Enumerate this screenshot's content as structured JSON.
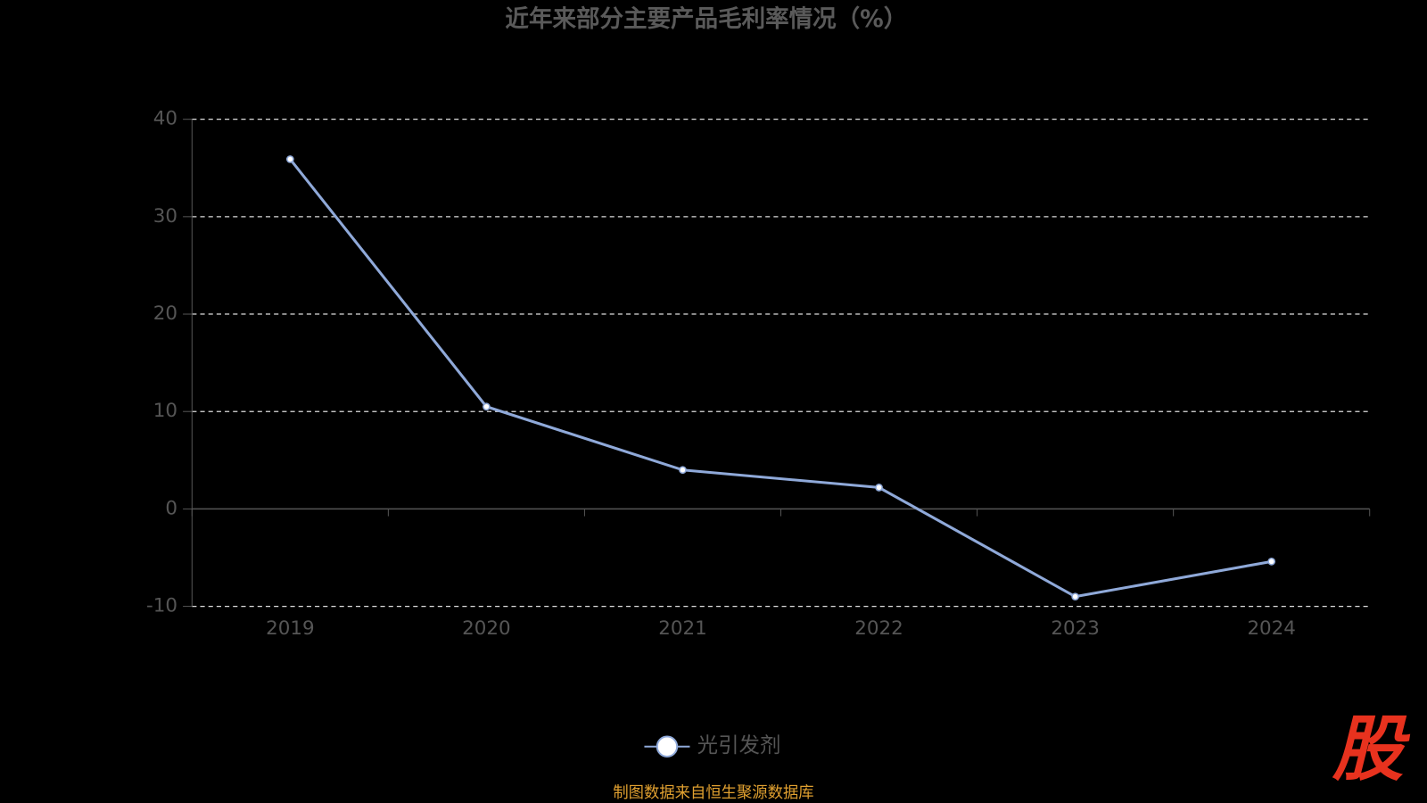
{
  "chart_data": {
    "type": "line",
    "title": "近年来部分主要产品毛利率情况（%）",
    "categories": [
      "2019",
      "2020",
      "2021",
      "2022",
      "2023",
      "2024"
    ],
    "series": [
      {
        "name": "光引发剂",
        "color": "#8fa9d9",
        "values": [
          35.9,
          10.5,
          4.0,
          2.2,
          -9.0,
          -5.4
        ]
      }
    ],
    "ylim": [
      -10,
      40
    ],
    "yticks": [
      -10,
      0,
      10,
      20,
      30,
      40
    ],
    "grid": true,
    "source": "制图数据来自恒生聚源数据库",
    "logo": "股"
  }
}
